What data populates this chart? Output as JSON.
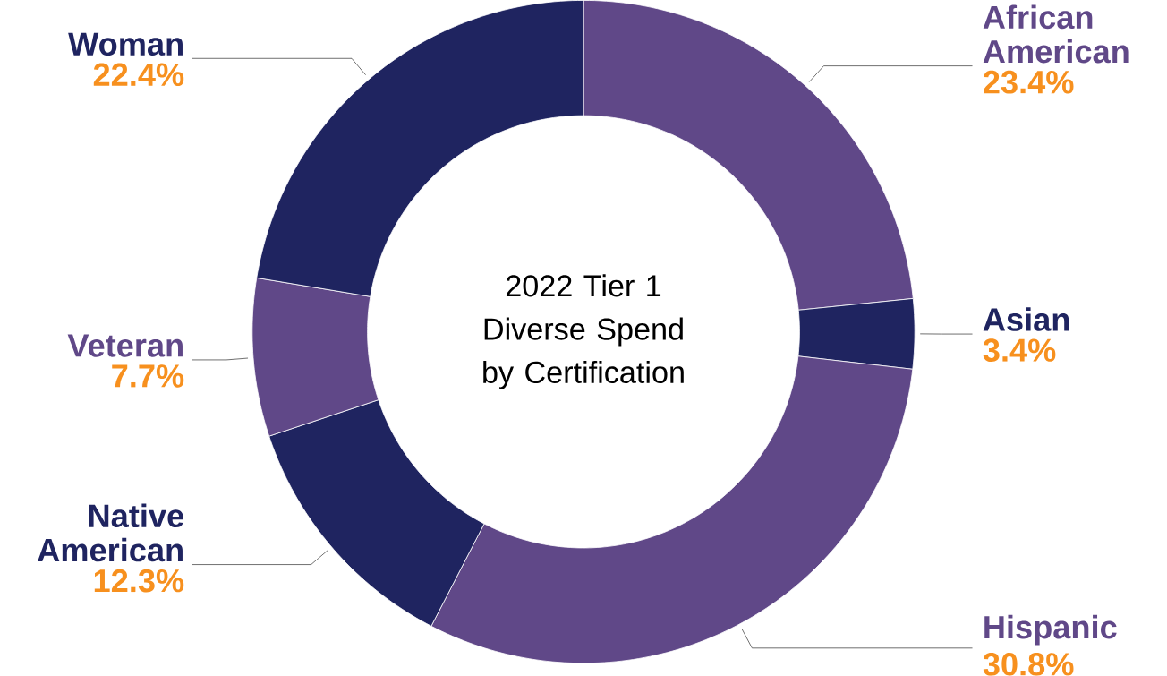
{
  "chart_data": {
    "type": "donut",
    "title": "2022 Tier 1 Diverse Spend by Certification",
    "categories": [
      "African American",
      "Asian",
      "Hispanic",
      "Native American",
      "Veteran",
      "Woman"
    ],
    "values": [
      23.4,
      3.4,
      30.8,
      12.3,
      7.7,
      22.4
    ],
    "colors": [
      "#604888",
      "#1f2460",
      "#604888",
      "#1f2460",
      "#604888",
      "#1f2460"
    ],
    "value_labels": [
      "23.4%",
      "3.4%",
      "30.8%",
      "12.3%",
      "7.7%",
      "22.4%"
    ]
  }
}
